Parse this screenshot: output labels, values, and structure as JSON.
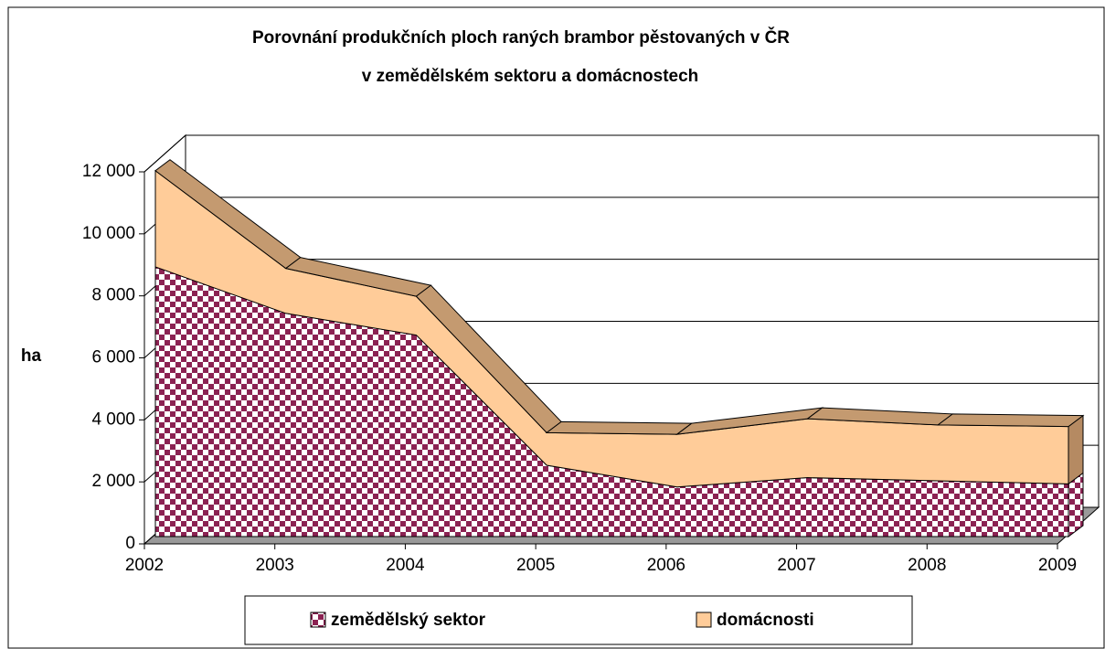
{
  "chart_data": {
    "type": "area",
    "title": [
      "Porovnání produkčních ploch raných brambor pěstovaných v ČR",
      "v zemědělském sektoru a domácnostech"
    ],
    "ylabel": "ha",
    "categories": [
      "2002",
      "2003",
      "2004",
      "2005",
      "2006",
      "2007",
      "2008",
      "2009"
    ],
    "series": [
      {
        "name": "zemědělský sektor",
        "color": "#8b2252",
        "values": [
          8700,
          7200,
          6500,
          2300,
          1600,
          1900,
          1800,
          1700
        ]
      },
      {
        "name": "domácnosti",
        "color": "#ffcc99",
        "values": [
          3100,
          1450,
          1250,
          1050,
          1700,
          1900,
          1800,
          1850
        ]
      }
    ],
    "stacked": true,
    "ylim": [
      0,
      12000
    ],
    "yticks": [
      0,
      {
        "value": 2000,
        "label": "2 000"
      },
      {
        "value": 4000,
        "label": "4 000"
      },
      {
        "value": 6000,
        "label": "6 000"
      },
      {
        "value": 8000,
        "label": "8 000"
      },
      {
        "value": 10000,
        "label": "10 000"
      },
      {
        "value": 12000,
        "label": "12 000"
      }
    ],
    "grid": true,
    "legend": "bottom"
  }
}
